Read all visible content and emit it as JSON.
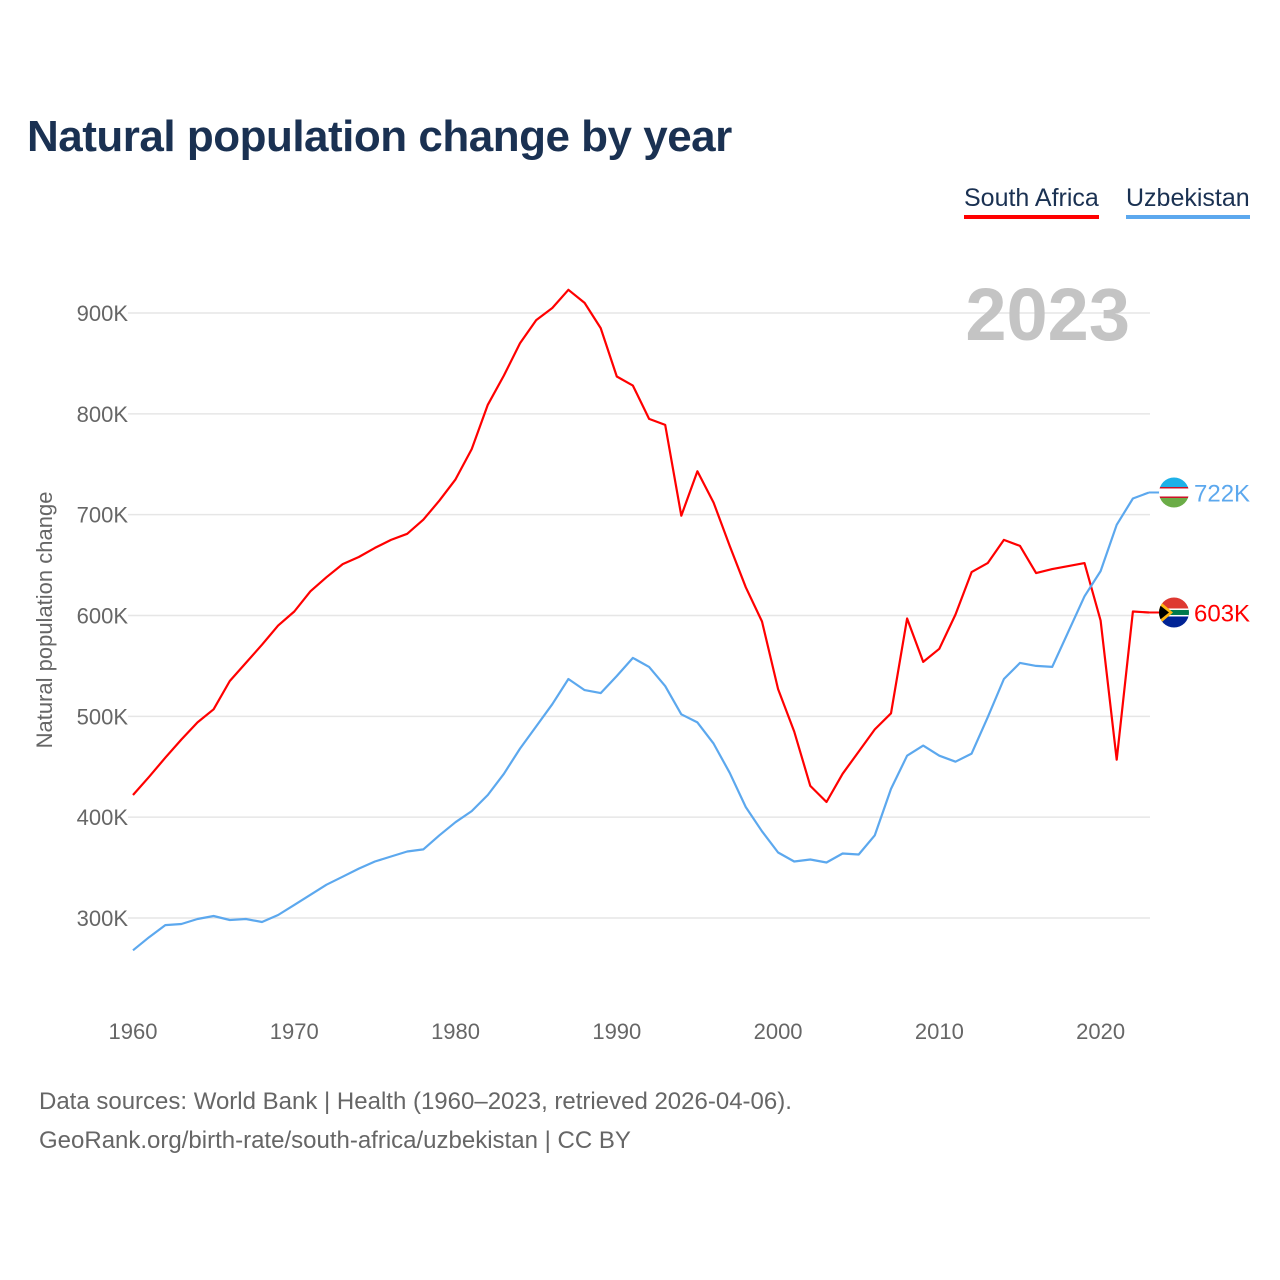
{
  "chart_data": {
    "type": "line",
    "title": "Natural population change by year",
    "ylabel": "Natural population change",
    "xlabel": "",
    "year_label": "2023",
    "x": [
      1960,
      1961,
      1962,
      1963,
      1964,
      1965,
      1966,
      1967,
      1968,
      1969,
      1970,
      1971,
      1972,
      1973,
      1974,
      1975,
      1976,
      1977,
      1978,
      1979,
      1980,
      1981,
      1982,
      1983,
      1984,
      1985,
      1986,
      1987,
      1988,
      1989,
      1990,
      1991,
      1992,
      1993,
      1994,
      1995,
      1996,
      1997,
      1998,
      1999,
      2000,
      2001,
      2002,
      2003,
      2004,
      2005,
      2006,
      2007,
      2008,
      2009,
      2010,
      2011,
      2012,
      2013,
      2014,
      2015,
      2016,
      2017,
      2018,
      2019,
      2020,
      2021,
      2022,
      2023
    ],
    "series": [
      {
        "name": "South Africa",
        "color": "#ff0000",
        "end_label": "603K",
        "values": [
          422000,
          440000,
          459000,
          477000,
          494000,
          507000,
          535000,
          553000,
          571000,
          590000,
          604000,
          624000,
          638000,
          651000,
          658000,
          667000,
          675000,
          681000,
          695000,
          714000,
          735000,
          765000,
          809000,
          838000,
          870000,
          893000,
          905000,
          923000,
          910000,
          885000,
          837000,
          828000,
          795000,
          789000,
          699000,
          743000,
          712000,
          669000,
          628000,
          594000,
          527000,
          485000,
          431000,
          415000,
          443000,
          465000,
          487000,
          503000,
          597000,
          554000,
          567000,
          601000,
          643000,
          652000,
          675000,
          669000,
          642000,
          646000,
          649000,
          652000,
          595000,
          457000,
          604000,
          603000
        ]
      },
      {
        "name": "Uzbekistan",
        "color": "#5ca8ee",
        "end_label": "722K",
        "values": [
          268000,
          281000,
          293000,
          294000,
          299000,
          302000,
          298000,
          299000,
          296000,
          303000,
          313000,
          323000,
          333000,
          341000,
          349000,
          356000,
          361000,
          366000,
          368000,
          382000,
          395000,
          406000,
          422000,
          443000,
          468000,
          490000,
          512000,
          537000,
          526000,
          523000,
          540000,
          558000,
          549000,
          530000,
          502000,
          494000,
          473000,
          444000,
          410000,
          386000,
          365000,
          356000,
          358000,
          355000,
          364000,
          363000,
          382000,
          428000,
          461000,
          471000,
          461000,
          455000,
          463000,
          499000,
          537000,
          553000,
          550000,
          549000,
          584000,
          619000,
          644000,
          690000,
          716000,
          722000
        ]
      }
    ],
    "y_ticks": [
      300000,
      400000,
      500000,
      600000,
      700000,
      800000,
      900000
    ],
    "y_tick_labels": [
      "300K",
      "400K",
      "500K",
      "600K",
      "700K",
      "800K",
      "900K"
    ],
    "x_ticks": [
      1960,
      1970,
      1980,
      1990,
      2000,
      2010,
      2020
    ],
    "x_tick_labels": [
      "1960",
      "1970",
      "1980",
      "1990",
      "2000",
      "2010",
      "2020"
    ],
    "xlim": [
      1960,
      2023
    ],
    "ylim": [
      200000,
      960000
    ],
    "grid": true,
    "legend_position": "top-right"
  },
  "footer": {
    "line1": "Data sources: World Bank | Health (1960–2023, retrieved 2026-04-06).",
    "line2": "GeoRank.org/birth-rate/south-africa/uzbekistan | CC BY"
  }
}
